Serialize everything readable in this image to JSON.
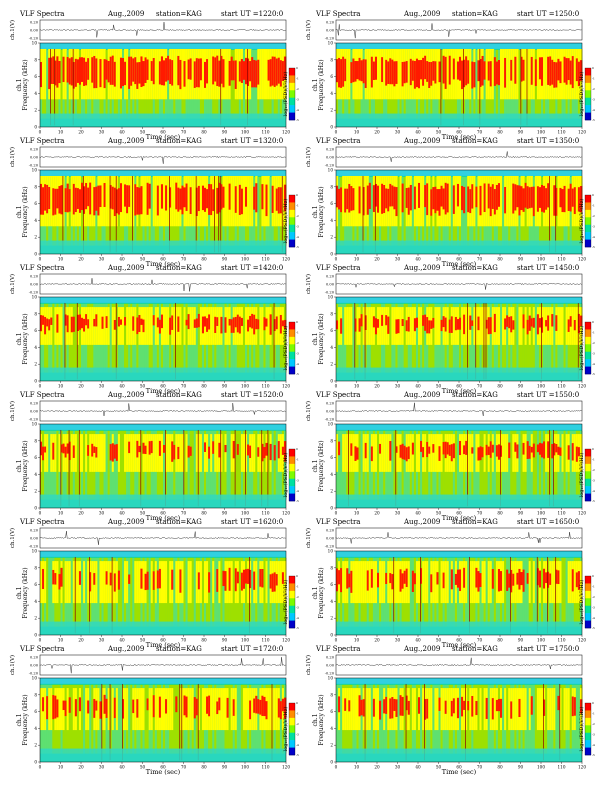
{
  "figure_label": "VLF Spectra",
  "colors": {
    "colorbar_stops": [
      "#ff0000",
      "#ff8c00",
      "#ffff00",
      "#7cfc00",
      "#00e0a0",
      "#00c8ff",
      "#0000c8"
    ],
    "background": "#ffffff",
    "waveform": "#000000"
  },
  "chart_data": [
    {
      "type": "heatmap",
      "title": "VLF Spectra",
      "month": "Aug.,2009",
      "station": "station=KAG",
      "start": "start  UT  =1220:0",
      "ylabel_top": "ch.1(V)",
      "ylabel_main": "ch.1\nFrequency (kHz)",
      "xlabel": "Time (sec)",
      "colorbar_label": "log₁₀(PSD)(V²/Hz)",
      "xlim": [
        0,
        120
      ],
      "x_ticks": [
        "0",
        "10",
        "20",
        "30",
        "40",
        "50",
        "60",
        "70",
        "80",
        "90",
        "100",
        "110",
        "120"
      ],
      "ylim": [
        0,
        10
      ],
      "y_ticks": [
        "0",
        "2",
        "4",
        "6",
        "8",
        "10"
      ],
      "top_ticks": [
        "0.20",
        "0.00",
        "-0.20"
      ],
      "colorbar_ticks": [
        "0",
        "-1",
        "-2",
        "-3",
        "-4",
        "-5"
      ],
      "red_band_khz": [
        4.5,
        8.5
      ],
      "activity": 0.78
    },
    {
      "type": "heatmap",
      "title": "VLF Spectra",
      "month": "Aug.,2009",
      "station": "station=KAG",
      "start": "start  UT  =1250:0",
      "ylabel_top": "ch.1(V)",
      "ylabel_main": "ch.1\nFrequency (kHz)",
      "xlabel": "Time (sec)",
      "colorbar_label": "log₁₀(PSD)(V²/Hz)",
      "xlim": [
        0,
        120
      ],
      "x_ticks": [
        "0",
        "10",
        "20",
        "30",
        "40",
        "50",
        "60",
        "70",
        "80",
        "90",
        "100",
        "110",
        "120"
      ],
      "ylim": [
        0,
        10
      ],
      "y_ticks": [
        "0",
        "2",
        "4",
        "6",
        "8",
        "10"
      ],
      "top_ticks": [
        "0.20",
        "0.00",
        "-0.20"
      ],
      "colorbar_ticks": [
        "0",
        "-1",
        "-2",
        "-3",
        "-4",
        "-5"
      ],
      "red_band_khz": [
        4.5,
        8.5
      ],
      "activity": 0.8
    },
    {
      "type": "heatmap",
      "title": "VLF Spectra",
      "month": "Aug.,2009",
      "station": "station=KAG",
      "start": "start  UT  =1320:0",
      "ylabel_top": "ch.1(V)",
      "ylabel_main": "ch.1\nFrequency (kHz)",
      "xlabel": "Time (sec)",
      "colorbar_label": "log₁₀(PSD)(V²/Hz)",
      "xlim": [
        0,
        120
      ],
      "x_ticks": [
        "0",
        "10",
        "20",
        "30",
        "40",
        "50",
        "60",
        "70",
        "80",
        "90",
        "100",
        "110",
        "120"
      ],
      "ylim": [
        0,
        10
      ],
      "y_ticks": [
        "0",
        "2",
        "4",
        "6",
        "8",
        "10"
      ],
      "top_ticks": [
        "0.20",
        "0.00",
        "-0.20"
      ],
      "colorbar_ticks": [
        "0",
        "-1",
        "-2",
        "-3",
        "-4",
        "-5"
      ],
      "red_band_khz": [
        4.5,
        8.5
      ],
      "activity": 0.7
    },
    {
      "type": "heatmap",
      "title": "VLF Spectra",
      "month": "Aug.,2009",
      "station": "station=KAG",
      "start": "start  UT  =1350:0",
      "ylabel_top": "ch.1(V)",
      "ylabel_main": "ch.1\nFrequency (kHz)",
      "xlabel": "Time (sec)",
      "colorbar_label": "log₁₀(PSD)(V²/Hz)",
      "xlim": [
        0,
        120
      ],
      "x_ticks": [
        "0",
        "10",
        "20",
        "30",
        "40",
        "50",
        "60",
        "70",
        "80",
        "90",
        "100",
        "110",
        "120"
      ],
      "ylim": [
        0,
        10
      ],
      "y_ticks": [
        "0",
        "2",
        "4",
        "6",
        "8",
        "10"
      ],
      "top_ticks": [
        "0.20",
        "0.00",
        "-0.20"
      ],
      "colorbar_ticks": [
        "0",
        "-1",
        "-2",
        "-3",
        "-4",
        "-5"
      ],
      "red_band_khz": [
        4.5,
        8.5
      ],
      "activity": 0.68
    },
    {
      "type": "heatmap",
      "title": "VLF Spectra",
      "month": "Aug.,2009",
      "station": "station=KAG",
      "start": "start  UT  =1420:0",
      "ylabel_top": "ch.1(V)",
      "ylabel_main": "ch.1\nFrequency (kHz)",
      "xlabel": "Time (sec)",
      "colorbar_label": "log₁₀(PSD)(V²/Hz)",
      "xlim": [
        0,
        120
      ],
      "x_ticks": [
        "0",
        "10",
        "20",
        "30",
        "40",
        "50",
        "60",
        "70",
        "80",
        "90",
        "100",
        "110",
        "120"
      ],
      "ylim": [
        0,
        10
      ],
      "y_ticks": [
        "0",
        "2",
        "4",
        "6",
        "8",
        "10"
      ],
      "top_ticks": [
        "0.20",
        "0.00",
        "-0.20"
      ],
      "colorbar_ticks": [
        "0",
        "-1",
        "-2",
        "-3",
        "-4",
        "-5"
      ],
      "red_band_khz": [
        5.5,
        8.0
      ],
      "activity": 0.55
    },
    {
      "type": "heatmap",
      "title": "VLF Spectra",
      "month": "Aug.,2009",
      "station": "station=KAG",
      "start": "start  UT  =1450:0",
      "ylabel_top": "ch.1(V)",
      "ylabel_main": "ch.1\nFrequency (kHz)",
      "xlabel": "Time (sec)",
      "colorbar_label": "log₁₀(PSD)(V²/Hz)",
      "xlim": [
        0,
        120
      ],
      "x_ticks": [
        "0",
        "10",
        "20",
        "30",
        "40",
        "50",
        "60",
        "70",
        "80",
        "90",
        "100",
        "110",
        "120"
      ],
      "ylim": [
        0,
        10
      ],
      "y_ticks": [
        "0",
        "2",
        "4",
        "6",
        "8",
        "10"
      ],
      "top_ticks": [
        "0.20",
        "0.00",
        "-0.20"
      ],
      "colorbar_ticks": [
        "0",
        "-1",
        "-2",
        "-3",
        "-4",
        "-5"
      ],
      "red_band_khz": [
        5.5,
        8.0
      ],
      "activity": 0.5
    },
    {
      "type": "heatmap",
      "title": "VLF Spectra",
      "month": "Aug.,2009",
      "station": "station=KAG",
      "start": "start  UT  =1520:0",
      "ylabel_top": "ch.1(V)",
      "ylabel_main": "ch.1\nFrequency (kHz)",
      "xlabel": "Time (sec)",
      "colorbar_label": "log₁₀(PSD)(V²/Hz)",
      "xlim": [
        0,
        120
      ],
      "x_ticks": [
        "0",
        "10",
        "20",
        "30",
        "40",
        "50",
        "60",
        "70",
        "80",
        "90",
        "100",
        "110",
        "120"
      ],
      "ylim": [
        0,
        10
      ],
      "y_ticks": [
        "0",
        "2",
        "4",
        "6",
        "8",
        "10"
      ],
      "top_ticks": [
        "0.20",
        "0.00",
        "-0.20"
      ],
      "colorbar_ticks": [
        "0",
        "-1",
        "-2",
        "-3",
        "-4",
        "-5"
      ],
      "red_band_khz": [
        5.5,
        8.0
      ],
      "activity": 0.4
    },
    {
      "type": "heatmap",
      "title": "VLF Spectra",
      "month": "Aug.,2009",
      "station": "station=KAG",
      "start": "start  UT  =1550:0",
      "ylabel_top": "ch.1(V)",
      "ylabel_main": "ch.1\nFrequency (kHz)",
      "xlabel": "Time (sec)",
      "colorbar_label": "log₁₀(PSD)(V²/Hz)",
      "xlim": [
        0,
        120
      ],
      "x_ticks": [
        "0",
        "10",
        "20",
        "30",
        "40",
        "50",
        "60",
        "70",
        "80",
        "90",
        "100",
        "110",
        "120"
      ],
      "ylim": [
        0,
        10
      ],
      "y_ticks": [
        "0",
        "2",
        "4",
        "6",
        "8",
        "10"
      ],
      "top_ticks": [
        "0.20",
        "0.00",
        "-0.20"
      ],
      "colorbar_ticks": [
        "0",
        "-1",
        "-2",
        "-3",
        "-4",
        "-5"
      ],
      "red_band_khz": [
        5.5,
        8.0
      ],
      "activity": 0.42
    },
    {
      "type": "heatmap",
      "title": "VLF Spectra",
      "month": "Aug.,2009",
      "station": "station=KAG",
      "start": "start  UT  =1620:0",
      "ylabel_top": "ch.1(V)",
      "ylabel_main": "ch.1\nFrequency (kHz)",
      "xlabel": "Time (sec)",
      "colorbar_label": "log₁₀(PSD)(V²/Hz)",
      "xlim": [
        0,
        120
      ],
      "x_ticks": [
        "0",
        "10",
        "20",
        "30",
        "40",
        "50",
        "60",
        "70",
        "80",
        "90",
        "100",
        "110",
        "120"
      ],
      "ylim": [
        0,
        10
      ],
      "y_ticks": [
        "0",
        "2",
        "4",
        "6",
        "8",
        "10"
      ],
      "top_ticks": [
        "0.20",
        "0.00",
        "-0.20"
      ],
      "colorbar_ticks": [
        "0",
        "-1",
        "-2",
        "-3",
        "-4",
        "-5"
      ],
      "red_band_khz": [
        5.0,
        8.0
      ],
      "activity": 0.38
    },
    {
      "type": "heatmap",
      "title": "VLF Spectra",
      "month": "Aug.,2009",
      "station": "station=KAG",
      "start": "start  UT  =1650:0",
      "ylabel_top": "ch.1(V)",
      "ylabel_main": "ch.1\nFrequency (kHz)",
      "xlabel": "Time (sec)",
      "colorbar_label": "log₁₀(PSD)(V²/Hz)",
      "xlim": [
        0,
        120
      ],
      "x_ticks": [
        "0",
        "10",
        "20",
        "30",
        "40",
        "50",
        "60",
        "70",
        "80",
        "90",
        "100",
        "110",
        "120"
      ],
      "ylim": [
        0,
        10
      ],
      "y_ticks": [
        "0",
        "2",
        "4",
        "6",
        "8",
        "10"
      ],
      "top_ticks": [
        "0.20",
        "0.00",
        "-0.20"
      ],
      "colorbar_ticks": [
        "0",
        "-1",
        "-2",
        "-3",
        "-4",
        "-5"
      ],
      "red_band_khz": [
        5.0,
        8.0
      ],
      "activity": 0.4
    },
    {
      "type": "heatmap",
      "title": "VLF Spectra",
      "month": "Aug.,2009",
      "station": "station=KAG",
      "start": "start  UT  =1720:0",
      "ylabel_top": "ch.1(V)",
      "ylabel_main": "ch.1\nFrequency (kHz)",
      "xlabel": "Time (sec)",
      "colorbar_label": "log₁₀(PSD)(V²/Hz)",
      "xlim": [
        0,
        120
      ],
      "x_ticks": [
        "0",
        "10",
        "20",
        "30",
        "40",
        "50",
        "60",
        "70",
        "80",
        "90",
        "100",
        "110",
        "120"
      ],
      "ylim": [
        0,
        10
      ],
      "y_ticks": [
        "0",
        "2",
        "4",
        "6",
        "8",
        "10"
      ],
      "top_ticks": [
        "0.20",
        "0.00",
        "-0.20"
      ],
      "colorbar_ticks": [
        "0",
        "-1",
        "-2",
        "-3",
        "-4",
        "-5"
      ],
      "red_band_khz": [
        5.0,
        8.0
      ],
      "activity": 0.36
    },
    {
      "type": "heatmap",
      "title": "VLF Spectra",
      "month": "Aug.,2009",
      "station": "station=KAG",
      "start": "start  UT  =1750:0",
      "ylabel_top": "ch.1(V)",
      "ylabel_main": "ch.1\nFrequency (kHz)",
      "xlabel": "Time (sec)",
      "colorbar_label": "log₁₀(PSD)(V²/Hz)",
      "xlim": [
        0,
        120
      ],
      "x_ticks": [
        "0",
        "10",
        "20",
        "30",
        "40",
        "50",
        "60",
        "70",
        "80",
        "90",
        "100",
        "110",
        "120"
      ],
      "ylim": [
        0,
        10
      ],
      "y_ticks": [
        "0",
        "2",
        "4",
        "6",
        "8",
        "10"
      ],
      "top_ticks": [
        "0.20",
        "0.00",
        "-0.20"
      ],
      "colorbar_ticks": [
        "0",
        "-1",
        "-2",
        "-3",
        "-4",
        "-5"
      ],
      "red_band_khz": [
        5.0,
        8.0
      ],
      "activity": 0.38
    }
  ]
}
